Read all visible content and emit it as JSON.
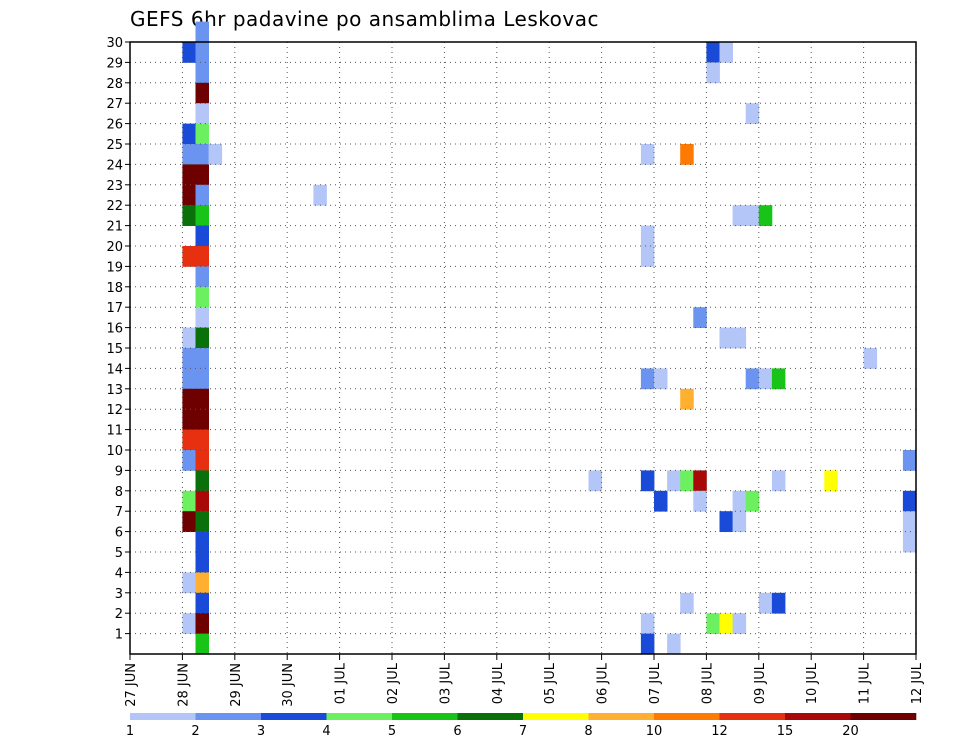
{
  "chart_data": {
    "type": "heatmap",
    "title": "GEFS 6hr padavine po ansamblima Leskovac",
    "xlabel": "",
    "ylabel": "",
    "x_ticks": [
      "27 JUN",
      "28 JUN",
      "29 JUN",
      "30 JUN",
      "01 JUL",
      "02 JUL",
      "03 JUL",
      "04 JUL",
      "05 JUL",
      "06 JUL",
      "07 JUL",
      "08 JUL",
      "09 JUL",
      "10 JUL",
      "11 JUL",
      "12 JUL"
    ],
    "y_ticks": [
      1,
      2,
      3,
      4,
      5,
      6,
      7,
      8,
      9,
      10,
      11,
      12,
      13,
      14,
      15,
      16,
      17,
      18,
      19,
      20,
      21,
      22,
      23,
      24,
      25,
      26,
      27,
      28,
      29,
      30
    ],
    "x_unit": "6-hour step from 27 JUN 00Z",
    "xlim": [
      0,
      60
    ],
    "ylim": [
      0,
      30
    ],
    "grid": true,
    "colorbar": {
      "labels": [
        "1",
        "2",
        "3",
        "4",
        "5",
        "6",
        "7",
        "8",
        "10",
        "12",
        "15",
        "20"
      ],
      "colors": [
        "#b3c6f7",
        "#6a94f0",
        "#1a4bd8",
        "#6cf060",
        "#18c418",
        "#0a700a",
        "#ffff00",
        "#ffb030",
        "#ff7a00",
        "#e63010",
        "#a80808",
        "#6e0000"
      ]
    },
    "cells": [
      [
        4,
        29,
        2
      ],
      [
        4,
        25,
        2
      ],
      [
        4,
        24,
        1
      ],
      [
        4,
        23,
        11
      ],
      [
        4,
        22,
        11
      ],
      [
        4,
        21,
        5
      ],
      [
        4,
        19,
        9
      ],
      [
        4,
        15,
        0
      ],
      [
        4,
        14,
        1
      ],
      [
        4,
        13,
        1
      ],
      [
        4,
        12,
        11
      ],
      [
        4,
        11,
        11
      ],
      [
        4,
        10,
        9
      ],
      [
        4,
        9,
        1
      ],
      [
        4,
        7,
        3
      ],
      [
        4,
        6,
        11
      ],
      [
        4,
        3,
        0
      ],
      [
        4,
        1,
        0
      ],
      [
        5,
        30,
        1
      ],
      [
        5,
        29,
        1
      ],
      [
        5,
        28,
        1
      ],
      [
        5,
        27,
        11
      ],
      [
        5,
        26,
        0
      ],
      [
        5,
        25,
        3
      ],
      [
        5,
        24,
        1
      ],
      [
        5,
        23,
        11
      ],
      [
        5,
        22,
        1
      ],
      [
        5,
        21,
        4
      ],
      [
        5,
        20,
        2
      ],
      [
        5,
        19,
        9
      ],
      [
        5,
        18,
        1
      ],
      [
        5,
        17,
        3
      ],
      [
        5,
        16,
        0
      ],
      [
        5,
        15,
        5
      ],
      [
        5,
        14,
        1
      ],
      [
        5,
        13,
        1
      ],
      [
        5,
        12,
        11
      ],
      [
        5,
        11,
        11
      ],
      [
        5,
        10,
        9
      ],
      [
        5,
        9,
        9
      ],
      [
        5,
        8,
        5
      ],
      [
        5,
        7,
        10
      ],
      [
        5,
        6,
        5
      ],
      [
        5,
        5,
        2
      ],
      [
        5,
        4,
        2
      ],
      [
        5,
        3,
        7
      ],
      [
        5,
        2,
        2
      ],
      [
        5,
        1,
        11
      ],
      [
        5,
        0,
        4
      ],
      [
        6,
        24,
        0
      ],
      [
        14,
        22,
        0
      ],
      [
        35,
        8,
        0
      ],
      [
        39,
        24,
        0
      ],
      [
        39,
        20,
        0
      ],
      [
        39,
        19,
        0
      ],
      [
        39,
        13,
        1
      ],
      [
        39,
        8,
        2
      ],
      [
        39,
        1,
        0
      ],
      [
        39,
        0,
        2
      ],
      [
        40,
        13,
        0
      ],
      [
        40,
        7,
        2
      ],
      [
        41,
        8,
        0
      ],
      [
        41,
        0,
        0
      ],
      [
        42,
        24,
        8
      ],
      [
        42,
        12,
        7
      ],
      [
        42,
        8,
        3
      ],
      [
        42,
        2,
        0
      ],
      [
        43,
        16,
        1
      ],
      [
        43,
        8,
        10
      ],
      [
        43,
        7,
        0
      ],
      [
        44,
        29,
        2
      ],
      [
        44,
        28,
        0
      ],
      [
        44,
        1,
        3
      ],
      [
        45,
        29,
        0
      ],
      [
        45,
        15,
        0
      ],
      [
        45,
        6,
        2
      ],
      [
        45,
        1,
        6
      ],
      [
        46,
        21,
        0
      ],
      [
        46,
        15,
        0
      ],
      [
        46,
        7,
        0
      ],
      [
        46,
        6,
        0
      ],
      [
        46,
        1,
        0
      ],
      [
        47,
        26,
        0
      ],
      [
        47,
        21,
        0
      ],
      [
        47,
        13,
        1
      ],
      [
        47,
        7,
        3
      ],
      [
        48,
        21,
        4
      ],
      [
        48,
        13,
        0
      ],
      [
        48,
        2,
        0
      ],
      [
        49,
        13,
        4
      ],
      [
        49,
        8,
        0
      ],
      [
        49,
        2,
        2
      ],
      [
        53,
        8,
        6
      ],
      [
        56,
        14,
        0
      ],
      [
        59,
        9,
        1
      ],
      [
        59,
        7,
        2
      ],
      [
        59,
        6,
        0
      ],
      [
        59,
        5,
        0
      ]
    ]
  }
}
